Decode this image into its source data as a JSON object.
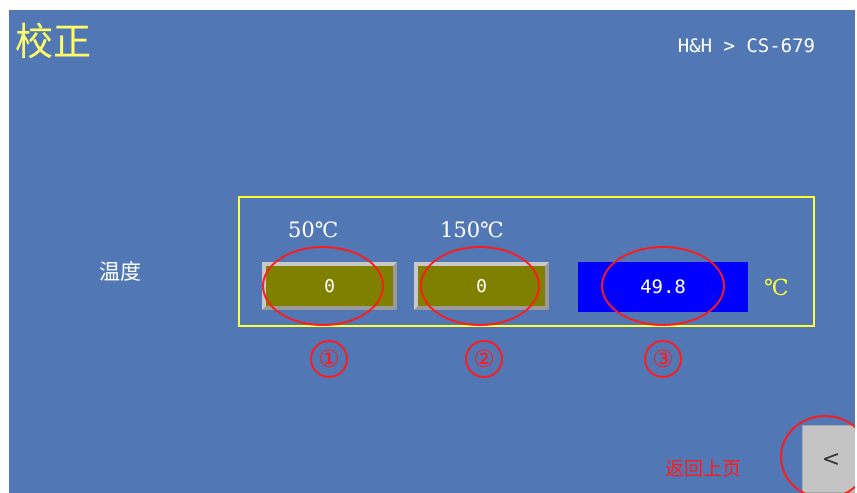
{
  "header": {
    "title": "校正",
    "breadcrumb": "H&H > CS-679"
  },
  "calibration": {
    "row_label": "温度",
    "col_50_label": "50℃",
    "col_150_label": "150℃",
    "value_50": "0",
    "value_150": "0",
    "current_reading": "49.8",
    "unit": "℃"
  },
  "annotations": {
    "marker_1": "①",
    "marker_2": "②",
    "marker_3": "③",
    "color": "#ff1a1a"
  },
  "footer": {
    "back_label": "返回上页",
    "back_icon": "chevron-left-icon",
    "back_glyph": "<"
  },
  "colors": {
    "background": "#5277b5",
    "title": "#ffff66",
    "frame": "#ffff33",
    "olive_field": "#7f7f00",
    "blue_field": "#0000ff"
  }
}
